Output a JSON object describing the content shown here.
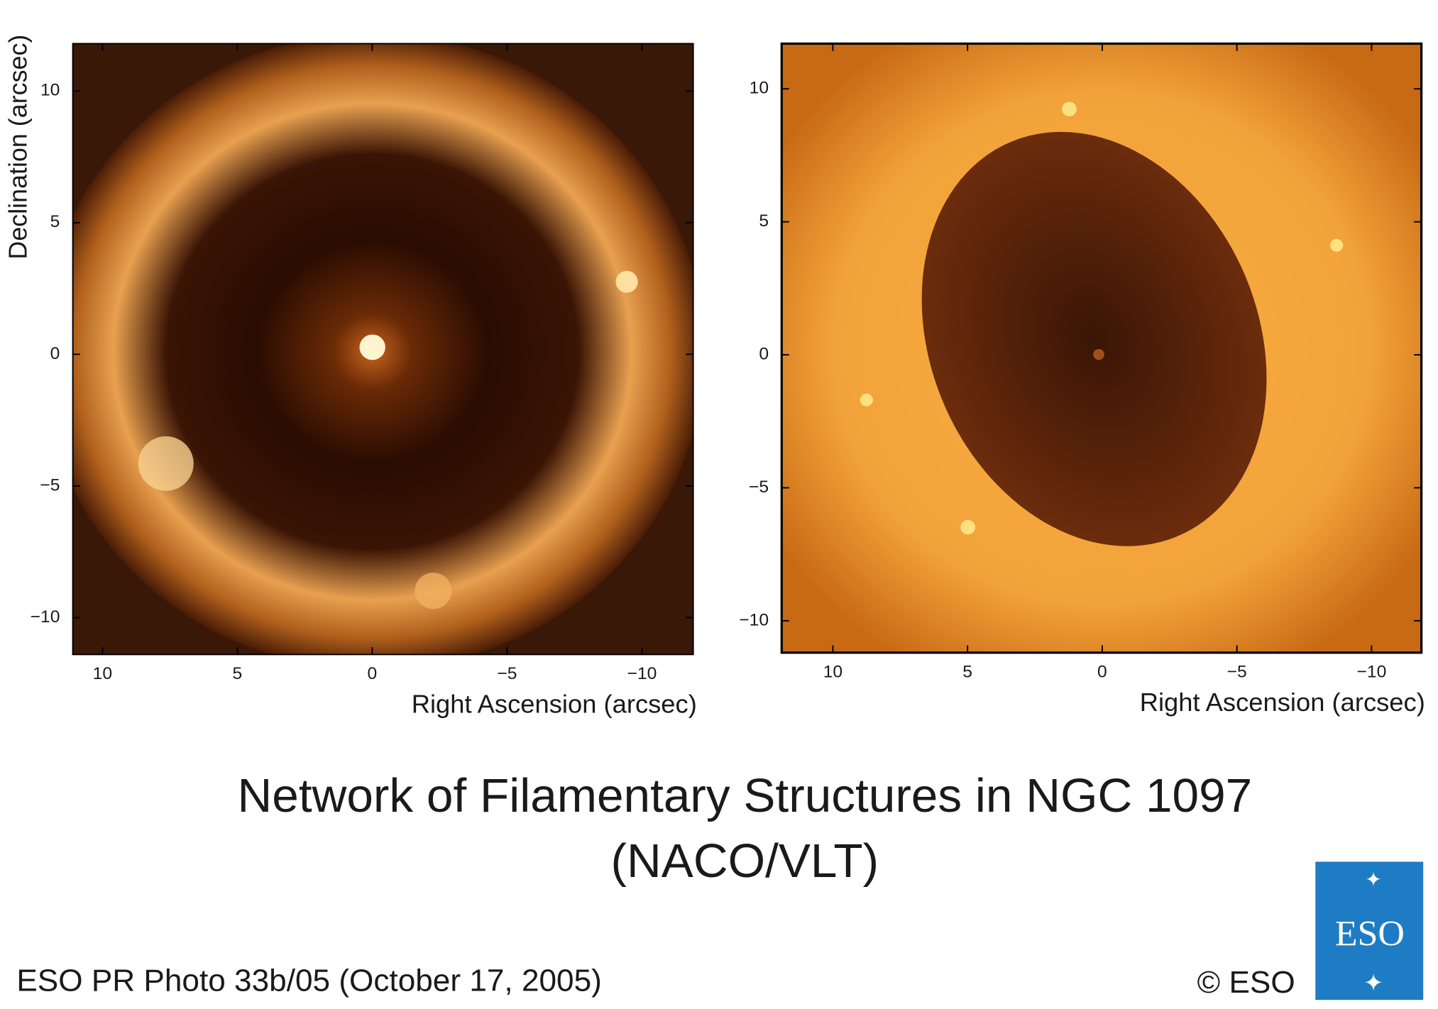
{
  "panels": [
    {
      "xlabel": "Right Ascension (arcsec)",
      "ylabel": "Declination (arcsec)",
      "xlim": [
        11.1,
        -11.9
      ],
      "ylim": [
        -11.4,
        11.8
      ],
      "xticks": [
        10,
        5,
        0,
        {
          "value": -5,
          "label": "−5"
        },
        {
          "value": -10,
          "label": "−10"
        }
      ],
      "yticks": [
        10,
        5,
        0,
        {
          "value": -5,
          "label": "−5"
        },
        {
          "value": -10,
          "label": "−10"
        }
      ]
    },
    {
      "xlabel": "Right Ascension (arcsec)",
      "xlim": [
        11.9,
        -11.85
      ],
      "ylim": [
        -11.2,
        11.7
      ],
      "xticks": [
        10,
        5,
        0,
        {
          "value": -5,
          "label": "−5"
        },
        {
          "value": -10,
          "label": "−10"
        }
      ],
      "yticks": [
        10,
        5,
        0,
        {
          "value": -5,
          "label": "−5"
        },
        {
          "value": -10,
          "label": "−10"
        }
      ]
    }
  ],
  "title": [
    "Network of Filamentary Structures in NGC 1097",
    "(NACO/VLT)"
  ],
  "credit": "ESO PR Photo 33b/05 (October 17, 2005)",
  "copyright": "© ESO",
  "logo": "ESO"
}
